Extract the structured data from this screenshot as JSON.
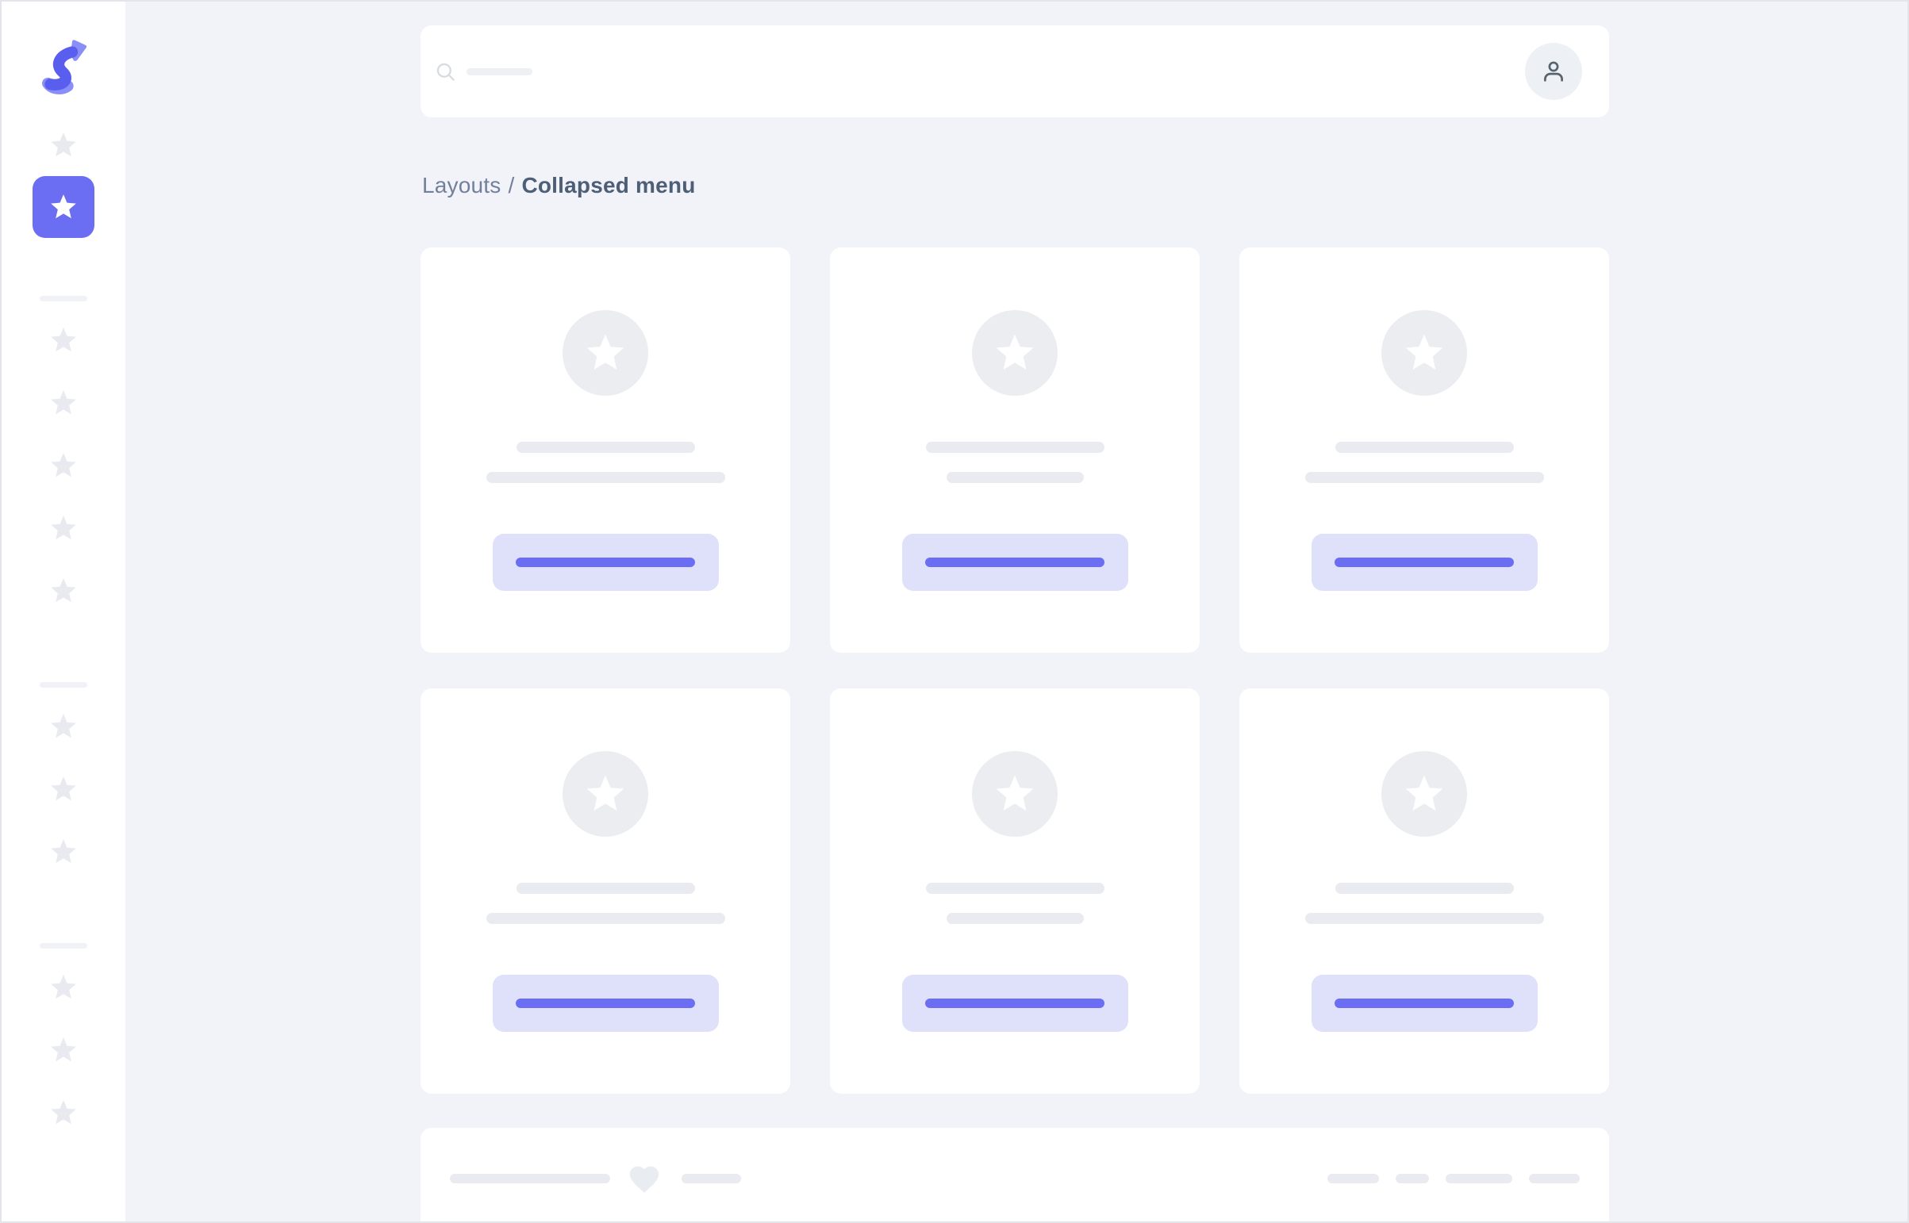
{
  "theme": {
    "background": "#f2f3f8",
    "surface": "#ffffff",
    "accent": "#6b6ef3",
    "accent_soft": "#dfe1fb",
    "skeleton": "#e9ebf0",
    "skeleton_light": "#eef0f4",
    "divider": "#f0f2f7",
    "breadcrumb_link_color": "#72809b",
    "breadcrumb_current_color": "#4d5e77",
    "dark_icon_color": "#57646f",
    "light_icon_color": "#d6dae1",
    "logo_purple_light": "#8a8ef7",
    "logo_purple_dark": "#5a5eef"
  },
  "sidebar": {
    "logo_icon": "logo-swoosh-icon",
    "groups": [
      {
        "items": [
          {
            "icon": "star-icon",
            "active": false
          },
          {
            "icon": "star-icon",
            "active": true
          }
        ]
      },
      {
        "items": [
          {
            "icon": "star-icon",
            "active": false
          },
          {
            "icon": "star-icon",
            "active": false
          },
          {
            "icon": "star-icon",
            "active": false
          },
          {
            "icon": "star-icon",
            "active": false
          },
          {
            "icon": "star-icon",
            "active": false
          }
        ]
      },
      {
        "items": [
          {
            "icon": "star-icon",
            "active": false
          },
          {
            "icon": "star-icon",
            "active": false
          },
          {
            "icon": "star-icon",
            "active": false
          }
        ]
      },
      {
        "items": [
          {
            "icon": "star-icon",
            "active": false
          },
          {
            "icon": "star-icon",
            "active": false
          },
          {
            "icon": "star-icon",
            "active": false
          }
        ]
      }
    ]
  },
  "topbar": {
    "search_icon": "search-icon",
    "search_value": "",
    "search_placeholder_bar_width": 83,
    "avatar_icon": "user-icon"
  },
  "breadcrumb": {
    "parent": "Layouts",
    "separator": "/",
    "current": "Collapsed menu"
  },
  "content": {
    "cards": [
      {
        "icon": "star-icon",
        "line_widths": [
          225,
          301
        ],
        "has_button": true
      },
      {
        "icon": "star-icon",
        "line_widths": [
          225,
          173
        ],
        "has_button": true
      },
      {
        "icon": "star-icon",
        "line_widths": [
          225,
          301
        ],
        "has_button": true
      },
      {
        "icon": "star-icon",
        "line_widths": [
          225,
          301
        ],
        "has_button": true
      },
      {
        "icon": "star-icon",
        "line_widths": [
          225,
          173
        ],
        "has_button": true
      },
      {
        "icon": "star-icon",
        "line_widths": [
          225,
          301
        ],
        "has_button": true
      }
    ],
    "button_bar_width": 226
  },
  "footer": {
    "left_line_widths": [
      202,
      75
    ],
    "heart_icon": "heart-icon",
    "right_line_widths": [
      65,
      42,
      84,
      64
    ]
  }
}
